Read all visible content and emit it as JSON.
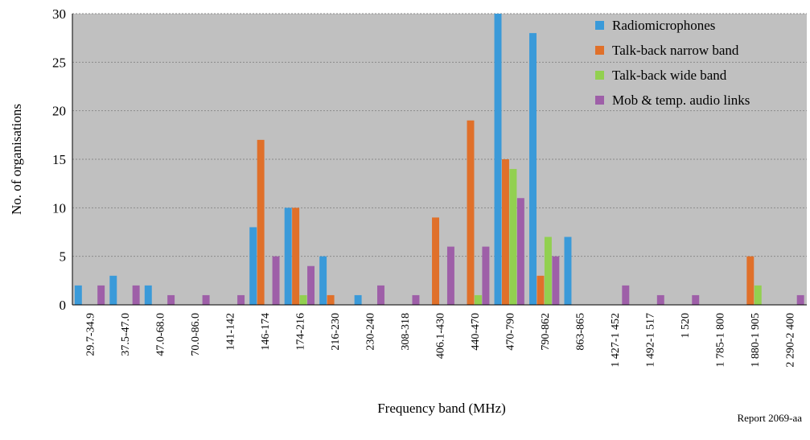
{
  "chart_data": {
    "type": "bar",
    "title": "",
    "xlabel": "Frequency band (MHz)",
    "ylabel": "No. of organisations",
    "ylim": [
      0,
      30
    ],
    "yticks": [
      0,
      5,
      10,
      15,
      20,
      25,
      30
    ],
    "grid": true,
    "legend_position": "top-right",
    "plot_background": "#c0c0c0",
    "categories": [
      "29.7-34.9",
      "37.5-47.0",
      "47.0-68.0",
      "70.0-86.0",
      "141-142",
      "146-174",
      "174-216",
      "216-230",
      "230-240",
      "308-318",
      "406.1-430",
      "440-470",
      "470-790",
      "790-862",
      "863-865",
      "1 427-1 452",
      "1 492-1 517",
      "1 520",
      "1 785-1 800",
      "1 880-1 905",
      "2 290-2 400"
    ],
    "series": [
      {
        "name": "Radiomicrophones",
        "color": "#3a9ad9",
        "values": [
          2,
          3,
          2,
          0,
          0,
          8,
          10,
          5,
          1,
          0,
          0,
          0,
          30,
          28,
          7,
          0,
          0,
          0,
          0,
          0,
          0
        ]
      },
      {
        "name": "Talk-back narrow band",
        "color": "#e0702a",
        "values": [
          0,
          0,
          0,
          0,
          0,
          17,
          10,
          1,
          0,
          0,
          9,
          19,
          15,
          3,
          0,
          0,
          0,
          0,
          0,
          5,
          0
        ]
      },
      {
        "name": "Talk-back wide band",
        "color": "#92d050",
        "values": [
          0,
          0,
          0,
          0,
          0,
          0,
          1,
          0,
          0,
          0,
          0,
          1,
          14,
          7,
          0,
          0,
          0,
          0,
          0,
          2,
          0
        ]
      },
      {
        "name": "Mob & temp. audio links",
        "color": "#9e5fa8",
        "values": [
          2,
          2,
          1,
          1,
          1,
          5,
          4,
          0,
          2,
          1,
          6,
          6,
          11,
          5,
          0,
          2,
          1,
          1,
          0,
          0,
          1
        ]
      }
    ]
  },
  "footer": {
    "report_label": "Report 2069-aa"
  }
}
